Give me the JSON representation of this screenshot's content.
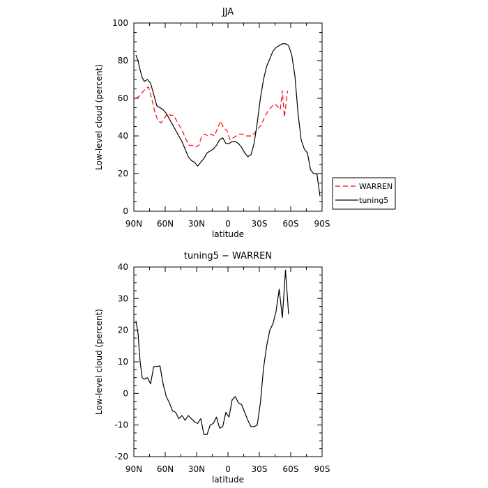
{
  "chart_data": [
    {
      "type": "line",
      "title": "JJA",
      "xlabel": "latitude",
      "ylabel": "Low-level cloud (percent)",
      "xlim": [
        90,
        -90
      ],
      "ylim": [
        0,
        100
      ],
      "xticks": [
        {
          "v": 90,
          "label": "90N"
        },
        {
          "v": 60,
          "label": "60N"
        },
        {
          "v": 30,
          "label": "30N"
        },
        {
          "v": 0,
          "label": "0"
        },
        {
          "v": -30,
          "label": "30S"
        },
        {
          "v": -60,
          "label": "60S"
        },
        {
          "v": -90,
          "label": "90S"
        }
      ],
      "yticks": [
        0,
        20,
        40,
        60,
        80,
        100
      ],
      "legend": {
        "position": "right",
        "entries": [
          {
            "name": "WARREN",
            "color": "#ff0000",
            "dash": "dashed"
          },
          {
            "name": "tuning5",
            "color": "#000000",
            "dash": "solid"
          }
        ]
      },
      "series": [
        {
          "name": "WARREN",
          "color": "#ff0000",
          "dash": "dashed",
          "x": [
            88,
            85,
            82,
            79,
            76,
            73,
            70,
            67,
            64,
            61,
            58,
            55,
            52,
            49,
            46,
            43,
            40,
            37,
            34,
            31,
            28,
            25,
            22,
            19,
            16,
            13,
            10,
            7,
            4,
            1,
            -2,
            -5,
            -8,
            -11,
            -14,
            -17,
            -20,
            -23,
            -26,
            -29,
            -32,
            -35,
            -38,
            -41,
            -44,
            -47,
            -50,
            -52,
            -54,
            -57
          ],
          "y": [
            60,
            61,
            63,
            65,
            66,
            60,
            53,
            48,
            47,
            49,
            52,
            51,
            51,
            48,
            45,
            42,
            38,
            35,
            35,
            34,
            35,
            40,
            41,
            40,
            41,
            40,
            44,
            48,
            44,
            43,
            38,
            39,
            40,
            41,
            41,
            40,
            40,
            40,
            42,
            44,
            46,
            50,
            53,
            55,
            57,
            56,
            54,
            64,
            50,
            64
          ]
        },
        {
          "name": "tuning5",
          "color": "#000000",
          "dash": "solid",
          "x": [
            88,
            86,
            84,
            82,
            80,
            77,
            74,
            71,
            68,
            65,
            62,
            59,
            56,
            53,
            50,
            47,
            44,
            41,
            38,
            35,
            32,
            29,
            26,
            23,
            20,
            17,
            14,
            11,
            8,
            5,
            2,
            -1,
            -4,
            -7,
            -10,
            -13,
            -16,
            -19,
            -22,
            -25,
            -28,
            -31,
            -34,
            -37,
            -40,
            -43,
            -46,
            -49,
            -52,
            -55,
            -58,
            -61,
            -64,
            -67,
            -70,
            -73,
            -76,
            -79,
            -82,
            -85,
            -88
          ],
          "y": [
            83,
            80,
            75,
            71,
            69,
            70,
            68,
            62,
            56,
            55,
            54,
            52,
            49,
            46,
            43,
            40,
            37,
            33,
            29,
            27,
            26,
            24,
            26,
            28,
            31,
            32,
            33,
            35,
            38,
            39,
            36,
            36,
            37,
            37,
            36,
            34,
            31,
            29,
            30,
            36,
            47,
            60,
            70,
            77,
            81,
            85,
            87,
            88,
            89,
            89,
            88,
            83,
            72,
            52,
            38,
            33,
            31,
            22,
            20,
            20,
            8
          ]
        }
      ]
    },
    {
      "type": "line",
      "title": "tuning5 − WARREN",
      "xlabel": "latitude",
      "ylabel": "Low-level cloud (percent)",
      "xlim": [
        90,
        -90
      ],
      "ylim": [
        -20,
        40
      ],
      "xticks": [
        {
          "v": 90,
          "label": "90N"
        },
        {
          "v": 60,
          "label": "60N"
        },
        {
          "v": 30,
          "label": "30N"
        },
        {
          "v": 0,
          "label": "0"
        },
        {
          "v": -30,
          "label": "30S"
        },
        {
          "v": -60,
          "label": "60S"
        },
        {
          "v": -90,
          "label": "90S"
        }
      ],
      "yticks": [
        -20,
        -10,
        0,
        10,
        20,
        30,
        40
      ],
      "series": [
        {
          "name": "",
          "color": "#000000",
          "dash": "solid",
          "x": [
            88,
            86,
            84,
            82,
            80,
            77,
            74,
            71,
            68,
            65,
            62,
            59,
            56,
            53,
            50,
            47,
            44,
            41,
            38,
            35,
            32,
            29,
            26,
            23,
            20,
            17,
            14,
            11,
            8,
            5,
            2,
            -1,
            -4,
            -7,
            -10,
            -13,
            -16,
            -19,
            -22,
            -25,
            -28,
            -31,
            -34,
            -37,
            -40,
            -43,
            -46,
            -49,
            -52,
            -55,
            -58
          ],
          "y": [
            23,
            19,
            10,
            5,
            4.5,
            5,
            3,
            8.5,
            8.5,
            8.7,
            3,
            -1,
            -3,
            -5.5,
            -6,
            -8,
            -7,
            -8.5,
            -7,
            -8,
            -9,
            -9.5,
            -8,
            -13,
            -13,
            -10,
            -9.5,
            -7.5,
            -11,
            -10.5,
            -6,
            -7.5,
            -2,
            -1,
            -3,
            -3.5,
            -6,
            -8.5,
            -10.5,
            -10.5,
            -10,
            -3,
            8,
            15,
            20,
            22,
            26,
            33,
            24,
            39,
            25
          ]
        }
      ]
    }
  ]
}
